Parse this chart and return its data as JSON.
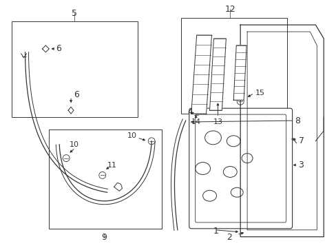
{
  "background_color": "#ffffff",
  "fig_width": 4.89,
  "fig_height": 3.6,
  "dpi": 100,
  "line_color": "#333333"
}
